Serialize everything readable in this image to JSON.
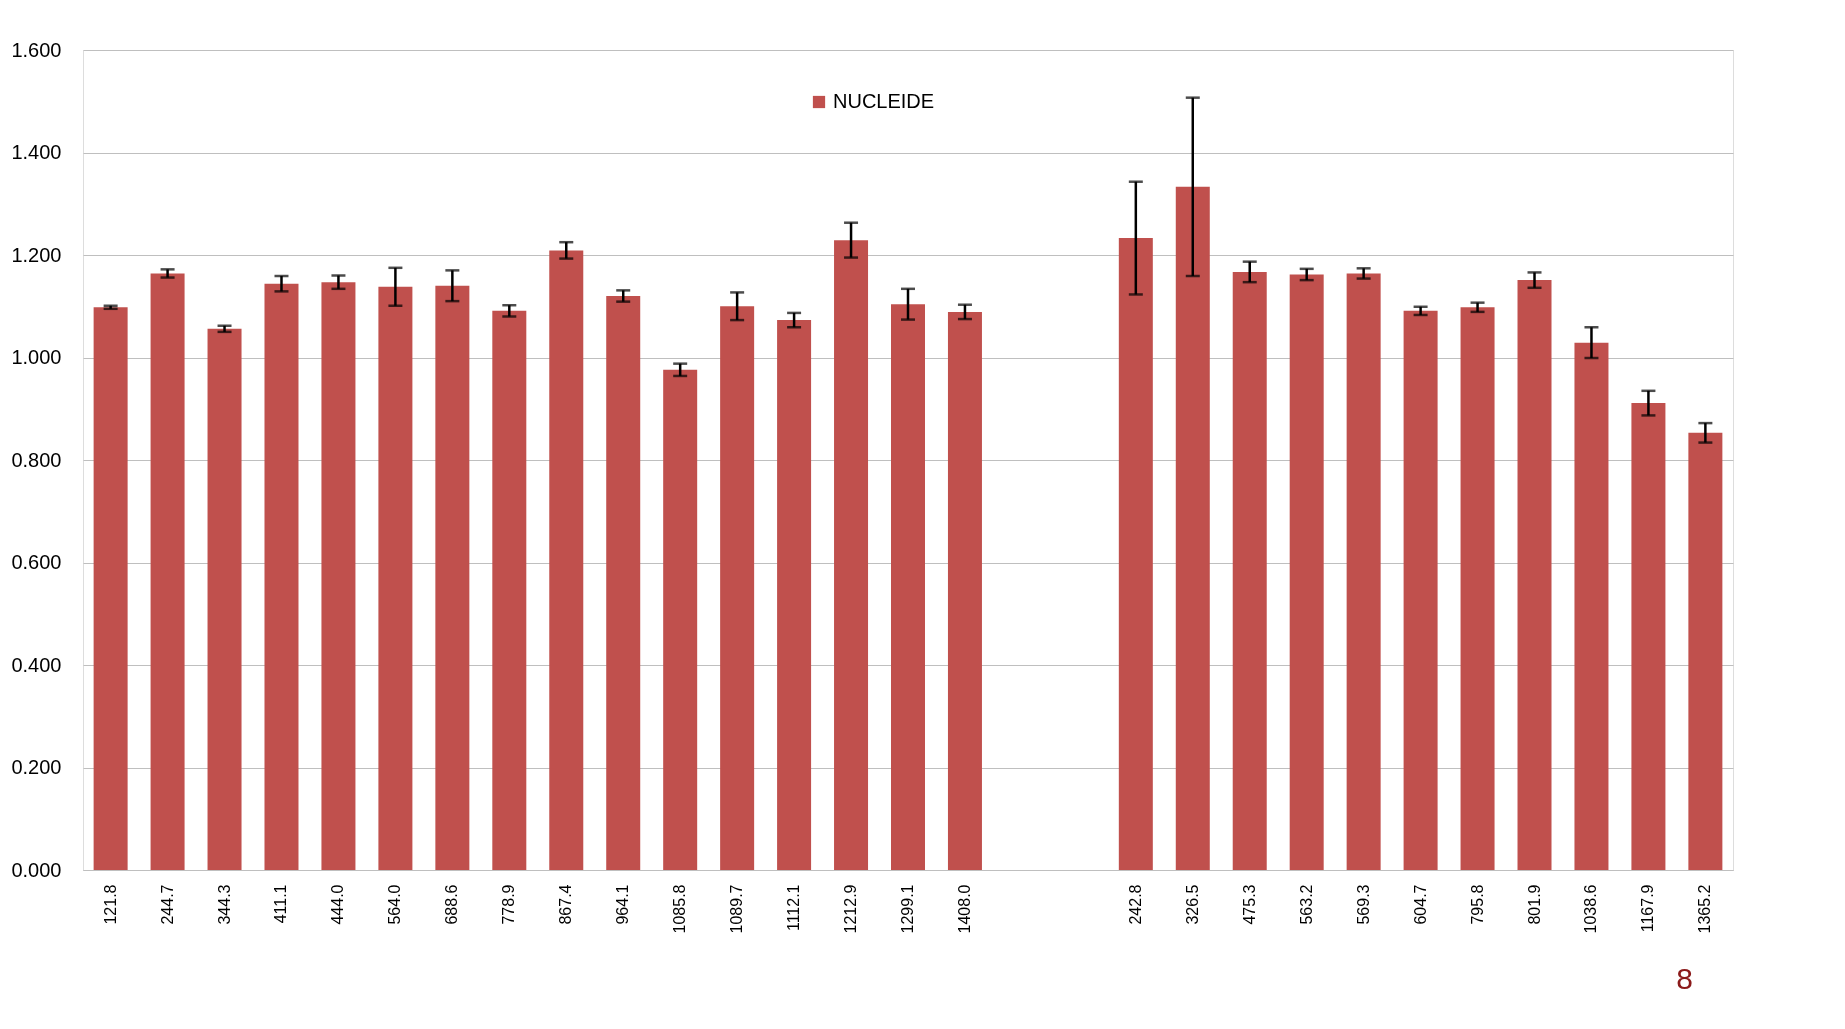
{
  "chart_data": {
    "type": "bar",
    "categories": [
      "121.8",
      "244.7",
      "344.3",
      "411.1",
      "444.0",
      "564.0",
      "688.6",
      "778.9",
      "867.4",
      "964.1",
      "1085.8",
      "1089.7",
      "1112.1",
      "1212.9",
      "1299.1",
      "1408.0",
      null,
      null,
      "242.8",
      "326.5",
      "475.3",
      "563.2",
      "569.3",
      "604.7",
      "795.8",
      "801.9",
      "1038.6",
      "1167.9",
      "1365.2"
    ],
    "series": [
      {
        "name": "NUCLEIDE",
        "color": "#c0504d",
        "values": [
          1.098,
          1.164,
          1.056,
          1.144,
          1.147,
          1.138,
          1.14,
          1.091,
          1.209,
          1.12,
          0.976,
          1.1,
          1.073,
          1.229,
          1.104,
          1.089,
          null,
          null,
          1.233,
          1.333,
          1.167,
          1.162,
          1.164,
          1.091,
          1.098,
          1.151,
          1.029,
          0.911,
          0.853
        ],
        "errors": [
          0.003,
          0.008,
          0.006,
          0.015,
          0.013,
          0.037,
          0.03,
          0.011,
          0.016,
          0.011,
          0.012,
          0.027,
          0.014,
          0.034,
          0.03,
          0.014,
          null,
          null,
          0.11,
          0.174,
          0.02,
          0.011,
          0.01,
          0.008,
          0.009,
          0.015,
          0.03,
          0.024,
          0.019
        ]
      }
    ],
    "ylim": [
      0,
      1.6
    ],
    "yticks": [
      {
        "value": 0,
        "label": "0.000"
      },
      {
        "value": 0.2,
        "label": "0.200"
      },
      {
        "value": 0.4,
        "label": "0.400"
      },
      {
        "value": 0.6,
        "label": "0.600"
      },
      {
        "value": 0.8,
        "label": "0.800"
      },
      {
        "value": 1.0,
        "label": "1.000"
      },
      {
        "value": 1.2,
        "label": "1.200"
      },
      {
        "value": 1.4,
        "label": "1.400"
      },
      {
        "value": 1.6,
        "label": "1.600"
      }
    ],
    "grid": "y",
    "legend": "top",
    "annotations": [
      "8"
    ]
  }
}
